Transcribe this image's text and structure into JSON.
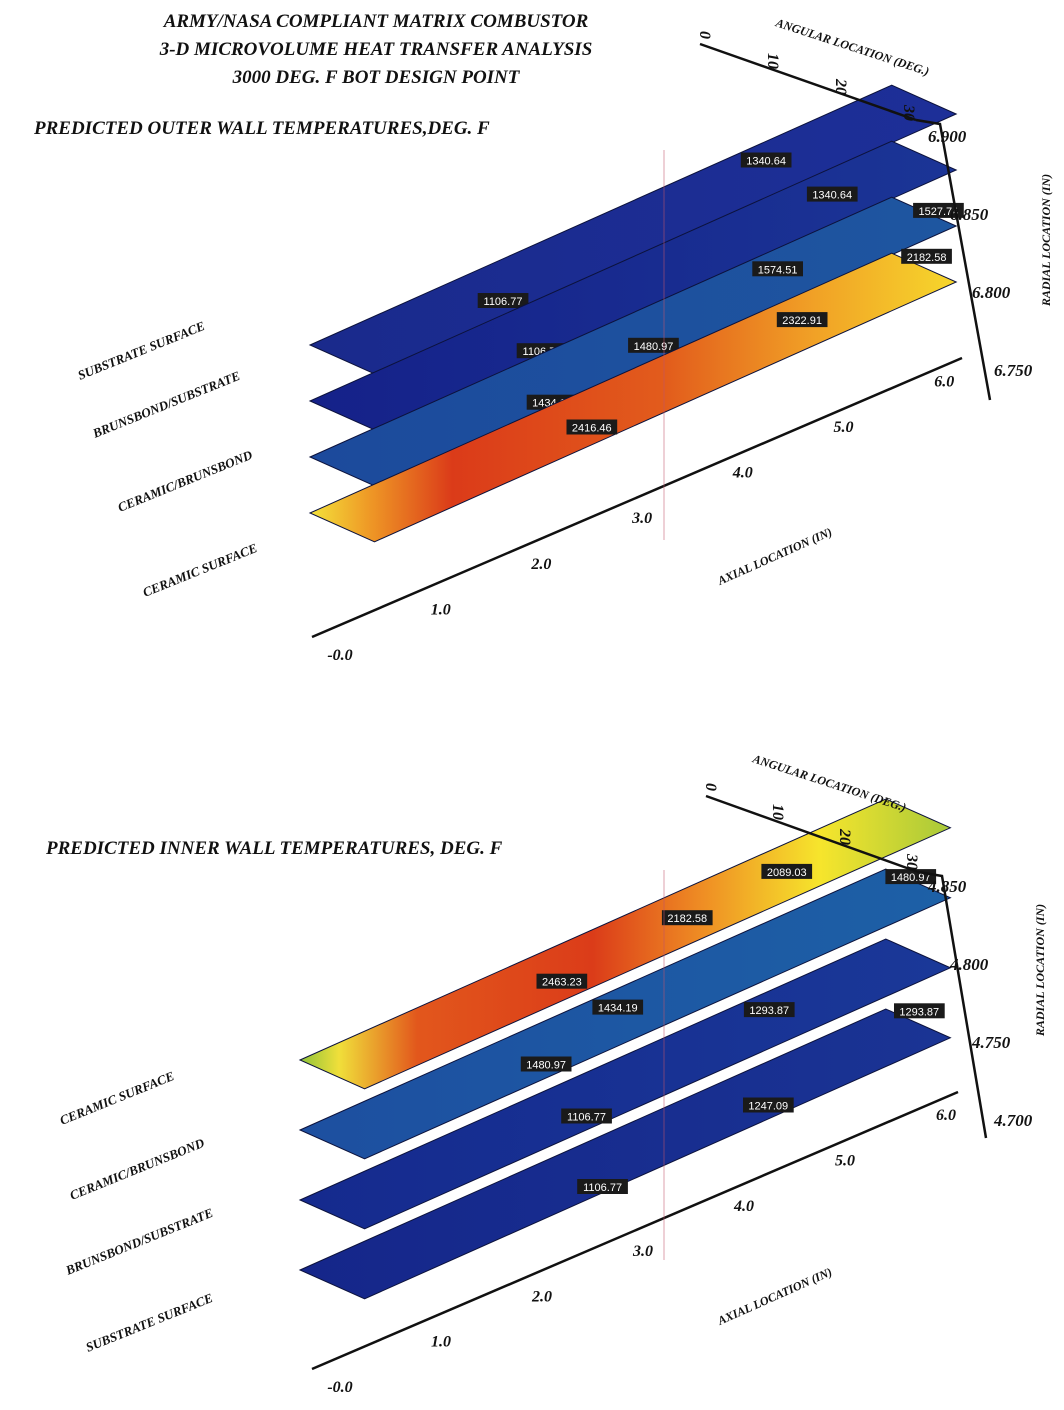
{
  "header": {
    "line1": "ARMY/NASA COMPLIANT MATRIX COMBUSTOR",
    "line2": "3-D MICROVOLUME HEAT TRANSFER ANALYSIS",
    "line3": "3000 DEG. F BOT DESIGN POINT"
  },
  "colors": {
    "cool": "#15258c",
    "mid_blue": "#1c4f9a",
    "hot_red": "#d83a18",
    "hot_orange": "#ec8a22",
    "hot_yellow": "#f6e02a",
    "label_bg": "#1a1a1a"
  },
  "chart_data": [
    {
      "type": "heatmap",
      "title": "PREDICTED OUTER WALL TEMPERATURES,DEG. F",
      "xlabel": "AXIAL LOCATION (IN)",
      "ylabel": "ANGULAR LOCATION (DEG.)",
      "zlabel": "RADIAL LOCATION (IN)",
      "x_ticks": [
        "-0.0",
        "1.0",
        "2.0",
        "3.0",
        "4.0",
        "5.0",
        "6.0"
      ],
      "y_ticks": [
        "0",
        "10",
        "20",
        "30"
      ],
      "z_ticks": [
        "6.900",
        "6.850",
        "6.800",
        "6.750"
      ],
      "xlim": [
        0,
        6
      ],
      "ylim": [
        0,
        30
      ],
      "zlim": [
        6.75,
        6.9
      ],
      "layers": [
        {
          "name": "SUBSTRATE SURFACE",
          "radial": 6.9,
          "labels": [
            {
              "x": 1.6,
              "y": 22,
              "text": "1106.77"
            },
            {
              "x": 4.4,
              "y": 10,
              "text": "1340.64"
            }
          ]
        },
        {
          "name": "BRUNSBOND/SUBSTRATE",
          "radial": 6.85,
          "labels": [
            {
              "x": 1.9,
              "y": 28,
              "text": "1106.77"
            },
            {
              "x": 5.0,
              "y": 14,
              "text": "1340.64"
            }
          ]
        },
        {
          "name": "CERAMIC/BRUNSBOND",
          "radial": 6.8,
          "labels": [
            {
              "x": 2.0,
              "y": 28,
              "text": "1434.19"
            },
            {
              "x": 3.1,
              "y": 22,
              "text": "1480.97"
            },
            {
              "x": 4.5,
              "y": 11,
              "text": "1574.51"
            },
            {
              "x": 6.0,
              "y": 18,
              "text": "1527.74"
            }
          ]
        },
        {
          "name": "CERAMIC SURFACE",
          "radial": 6.75,
          "labels": [
            {
              "x": 2.5,
              "y": 21,
              "text": "2416.46"
            },
            {
              "x": 4.7,
              "y": 14,
              "text": "2322.91"
            },
            {
              "x": 6.0,
              "y": 10,
              "text": "2182.58"
            }
          ]
        }
      ]
    },
    {
      "type": "heatmap",
      "title": "PREDICTED INNER WALL TEMPERATURES, DEG. F",
      "xlabel": "AXIAL LOCATION (IN)",
      "ylabel": "ANGULAR LOCATION (DEG.)",
      "zlabel": "RADIAL LOCATION (IN)",
      "x_ticks": [
        "-0.0",
        "1.0",
        "2.0",
        "3.0",
        "4.0",
        "5.0",
        "6.0"
      ],
      "y_ticks": [
        "0",
        "10",
        "20",
        "30"
      ],
      "z_ticks": [
        "4.850",
        "4.800",
        "4.750",
        "4.700"
      ],
      "xlim": [
        0,
        6
      ],
      "ylim": [
        0,
        30
      ],
      "zlim": [
        4.7,
        4.85
      ],
      "layers": [
        {
          "name": "CERAMIC SURFACE",
          "radial": 4.85,
          "labels": [
            {
              "x": 4.6,
              "y": 15,
              "text": "2089.03"
            },
            {
              "x": 3.6,
              "y": 16,
              "text": "2182.58"
            },
            {
              "x": 2.3,
              "y": 20,
              "text": "2463.23"
            }
          ]
        },
        {
          "name": "CERAMIC/BRUNSBOND",
          "radial": 4.8,
          "labels": [
            {
              "x": 5.9,
              "y": 10,
              "text": "1480.97"
            },
            {
              "x": 3.0,
              "y": 10,
              "text": "1434.19"
            },
            {
              "x": 2.1,
              "y": 23,
              "text": "1480.97"
            }
          ]
        },
        {
          "name": "BRUNSBOND/SUBSTRATE",
          "radial": 4.75,
          "labels": [
            {
              "x": 4.5,
              "y": 10,
              "text": "1293.87"
            },
            {
              "x": 2.5,
              "y": 23,
              "text": "1106.77"
            }
          ]
        },
        {
          "name": "SUBSTRATE SURFACE",
          "radial": 4.7,
          "labels": [
            {
              "x": 6.0,
              "y": 9,
              "text": "1293.87"
            },
            {
              "x": 4.3,
              "y": 23,
              "text": "1247.09"
            },
            {
              "x": 2.6,
              "y": 27,
              "text": "1106.77"
            }
          ]
        }
      ]
    }
  ]
}
